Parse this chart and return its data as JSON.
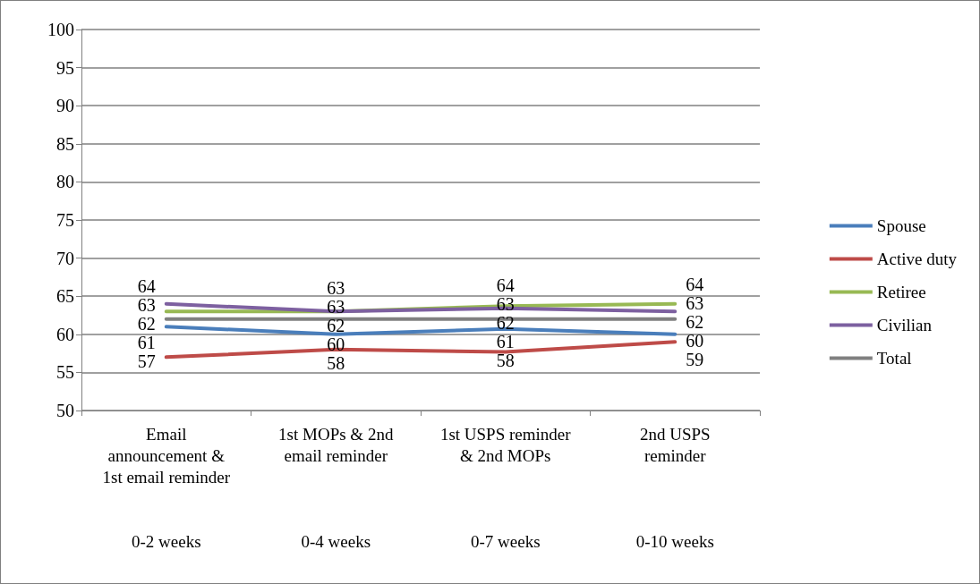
{
  "chart_data": {
    "type": "line",
    "categories": [
      "Email\nannouncement &\n1st email reminder\n\n\n0-2 weeks",
      "1st MOPs & 2nd\nemail reminder\n\n\n\n0-4 weeks",
      "1st USPS reminder\n& 2nd MOPs\n\n\n\n0-7 weeks",
      "2nd USPS\nreminder\n\n\n\n0-10 weeks"
    ],
    "series": [
      {
        "name": "Spouse",
        "color": "#4a7ebb",
        "values": [
          61,
          60,
          60.7,
          60
        ],
        "value_labels": [
          "61",
          "60",
          "61",
          "60"
        ]
      },
      {
        "name": "Active duty",
        "color": "#be4b48",
        "values": [
          57,
          58,
          57.7,
          59
        ],
        "value_labels": [
          "57",
          "58",
          "58",
          "59"
        ]
      },
      {
        "name": "Retiree",
        "color": "#98b954",
        "values": [
          63,
          63,
          63.7,
          64
        ],
        "value_labels": [
          "63",
          "63",
          "64",
          "64"
        ]
      },
      {
        "name": "Civilian",
        "color": "#7d60a0",
        "values": [
          64,
          63,
          63.4,
          63
        ],
        "value_labels": [
          "64",
          "63",
          "63",
          "63"
        ]
      },
      {
        "name": "Total",
        "color": "#808080",
        "values": [
          62,
          62,
          62,
          62
        ],
        "value_labels": [
          "62",
          "62",
          "62",
          "62"
        ]
      }
    ],
    "ylim": [
      50,
      100
    ],
    "yticks": [
      50,
      55,
      60,
      65,
      70,
      75,
      80,
      85,
      90,
      95,
      100
    ],
    "grid": "y",
    "legend": "right",
    "marker": "none",
    "line_style": "solid"
  }
}
